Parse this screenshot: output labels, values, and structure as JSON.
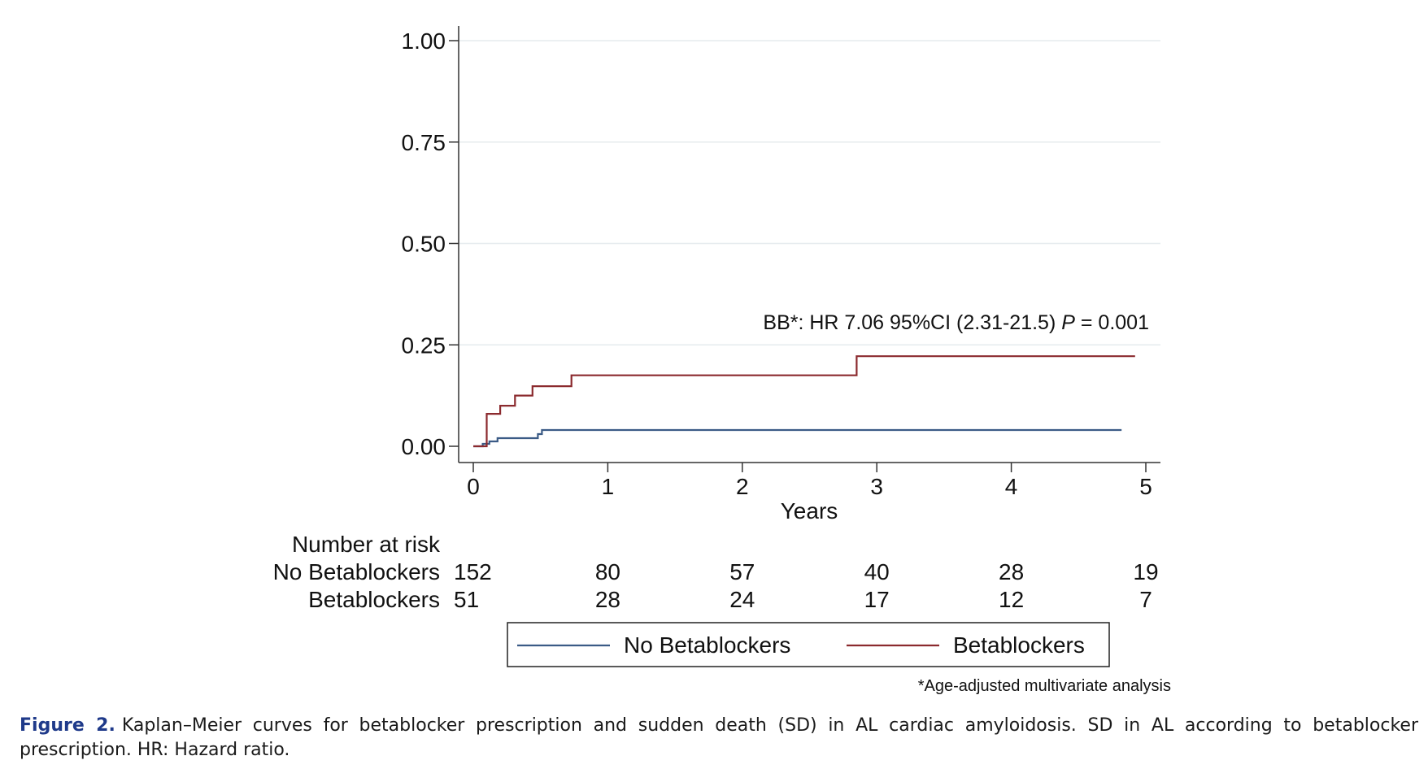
{
  "chart_data": {
    "type": "line",
    "step": true,
    "xlabel": "Years",
    "ylabel": "",
    "xlim": [
      0,
      5
    ],
    "ylim": [
      0,
      1
    ],
    "x_ticks": [
      "0",
      "1",
      "2",
      "3",
      "4",
      "5"
    ],
    "y_ticks": [
      "0.00",
      "0.25",
      "0.50",
      "0.75",
      "1.00"
    ],
    "grid": "horizontal",
    "series": [
      {
        "name": "No Betablockers",
        "color": "#3b5b86",
        "points": [
          [
            0,
            0
          ],
          [
            0.07,
            0
          ],
          [
            0.07,
            0.006
          ],
          [
            0.12,
            0.006
          ],
          [
            0.12,
            0.012
          ],
          [
            0.18,
            0.012
          ],
          [
            0.18,
            0.02
          ],
          [
            0.48,
            0.02
          ],
          [
            0.48,
            0.03
          ],
          [
            0.51,
            0.03
          ],
          [
            0.51,
            0.04
          ],
          [
            4.82,
            0.04
          ]
        ]
      },
      {
        "name": "Betablockers",
        "color": "#8b2a2e",
        "points": [
          [
            0,
            0
          ],
          [
            0.1,
            0
          ],
          [
            0.1,
            0.08
          ],
          [
            0.2,
            0.08
          ],
          [
            0.2,
            0.1
          ],
          [
            0.31,
            0.1
          ],
          [
            0.31,
            0.125
          ],
          [
            0.44,
            0.125
          ],
          [
            0.44,
            0.148
          ],
          [
            0.73,
            0.148
          ],
          [
            0.73,
            0.175
          ],
          [
            2.85,
            0.175
          ],
          [
            2.85,
            0.222
          ],
          [
            4.92,
            0.222
          ]
        ]
      }
    ],
    "annotation": {
      "prefix": "BB*: HR 7.06 95%CI (2.31-21.5) ",
      "p_label": "P",
      "suffix": " = 0.001"
    },
    "risk_table": {
      "title": "Number at risk",
      "rows": [
        {
          "label": "No Betablockers",
          "values": [
            "152",
            "80",
            "57",
            "40",
            "28",
            "19"
          ]
        },
        {
          "label": "Betablockers",
          "values": [
            "51",
            "28",
            "24",
            "17",
            "12",
            "7"
          ]
        }
      ]
    },
    "legend": {
      "placement": "bottom",
      "entries": [
        "No Betablockers",
        "Betablockers"
      ]
    },
    "footnote": "*Age-adjusted multivariate analysis"
  },
  "caption": {
    "label": "Figure 2.",
    "text": "Kaplan–Meier curves for betablocker prescription and sudden death (SD) in AL cardiac amyloidosis. SD in AL according to betablocker prescription. HR: Hazard ratio."
  }
}
